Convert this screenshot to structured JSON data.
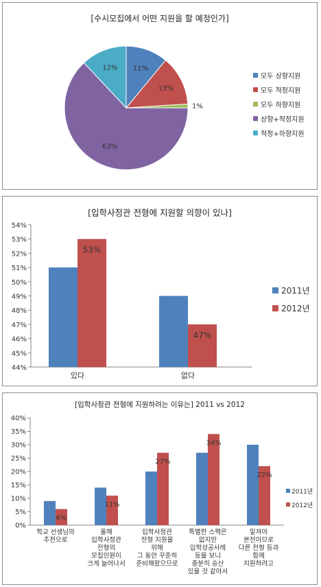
{
  "chart_data": [
    {
      "type": "pie",
      "title": "[수시모집에서 어떤 지원을 할 예정인가]",
      "labels": [
        "모두 상향지원",
        "모두 적정지원",
        "모두 하향지원",
        "상향+적정지원",
        "적정+하향지원"
      ],
      "values": [
        11,
        13,
        1,
        63,
        12
      ],
      "value_labels": [
        "11%",
        "13%",
        "1%",
        "63%",
        "12%"
      ],
      "colors": [
        "#4f81bd",
        "#c0504d",
        "#9bbb59",
        "#8064a2",
        "#4bacc6"
      ],
      "legend_position": "right"
    },
    {
      "type": "bar",
      "title": "[입학사정관 전형에 지원할 의향이 있나]",
      "categories": [
        "있다",
        "없다"
      ],
      "series": [
        {
          "name": "2011년",
          "values": [
            51,
            49
          ],
          "color": "#4f81bd"
        },
        {
          "name": "2012년",
          "values": [
            53,
            47
          ],
          "color": "#c0504d",
          "data_labels": [
            "53%",
            "47%"
          ]
        }
      ],
      "ylim": [
        44,
        54
      ],
      "yticks": [
        "44%",
        "45%",
        "46%",
        "47%",
        "48%",
        "49%",
        "50%",
        "51%",
        "52%",
        "53%",
        "54%"
      ],
      "legend_position": "right",
      "grid": false
    },
    {
      "type": "bar",
      "title": "[입학사정관 전형에 지원하려는 이유는] 2011 vs 2012",
      "categories": [
        [
          "학교 선생님의",
          "추천으로"
        ],
        [
          "올해",
          "입학사정관",
          "전형의",
          "모집인원이",
          "크게 늘어나서"
        ],
        [
          "입학사정관",
          "전형 지원을",
          "위해",
          "그 동안 꾸준히",
          "준비해왔으므로"
        ],
        [
          "특별한 스펙은",
          "없지만",
          "입학성공사례",
          "등을 보니",
          "충분히 승산",
          "있을 것 같아서"
        ],
        [
          "밑져야",
          "본전이므로",
          "다른 전형 등과",
          "함께",
          "지원하려고"
        ]
      ],
      "series": [
        {
          "name": "2011년",
          "values": [
            9,
            14,
            20,
            27,
            30
          ],
          "color": "#4f81bd"
        },
        {
          "name": "2012년",
          "values": [
            6,
            11,
            27,
            34,
            22
          ],
          "color": "#c0504d",
          "data_labels": [
            "6%",
            "11%",
            "27%",
            "34%",
            "22%"
          ]
        }
      ],
      "ylim": [
        0,
        40
      ],
      "yticks": [
        "0%",
        "5%",
        "10%",
        "15%",
        "20%",
        "25%",
        "30%",
        "35%",
        "40%"
      ],
      "legend_position": "right",
      "grid": false
    }
  ]
}
